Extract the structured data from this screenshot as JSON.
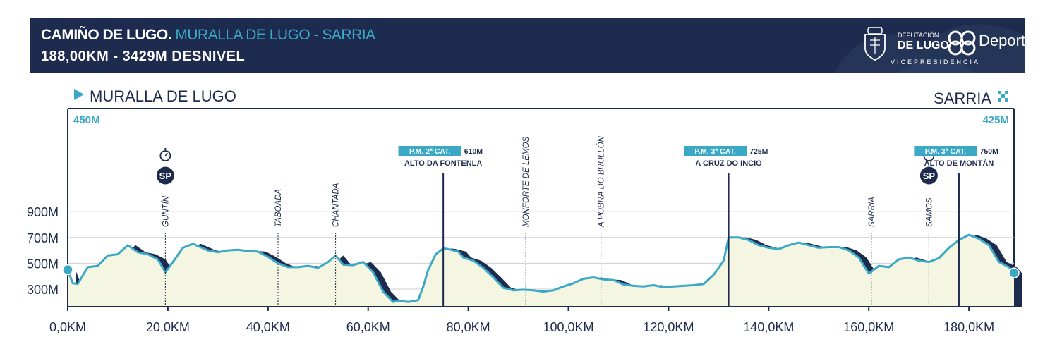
{
  "header": {
    "route_prefix": "CAMIÑO DE LUGO.",
    "route_name": "MURALLA DE LUGO - SARRIA",
    "subtitle": "188,00KM - 3429M DESNIVEL"
  },
  "logo": {
    "line1": "DEPUTACIÓN",
    "line2": "DE LUGO",
    "brand": "Deportes",
    "line3": "VICEPRESIDENCIA"
  },
  "start": {
    "label": "MURALLA DE LUGO",
    "altitude": "450M"
  },
  "finish": {
    "label": "SARRIA",
    "altitude": "425M"
  },
  "colors": {
    "navy": "#1d2b4e",
    "accent": "#3ba9c6",
    "fill": "#f4f6e2",
    "grid": "#cfcfcf"
  },
  "icons": {
    "start": "play-triangle-icon",
    "finish": "checkered-flag-icon",
    "sprint": "stopwatch-icon"
  },
  "chart_data": {
    "type": "area",
    "xlabel": "",
    "ylabel": "",
    "xlim": [
      0,
      189
    ],
    "ylim": [
      200,
      900
    ],
    "x_ticks": [
      0,
      20,
      40,
      60,
      80,
      100,
      120,
      140,
      160,
      180
    ],
    "x_tick_labels": [
      "0,0KM",
      "20,0KM",
      "40,0KM",
      "60,0KM",
      "80,0KM",
      "100,0KM",
      "120,0KM",
      "140,0KM",
      "160,0KM",
      "180,0KM"
    ],
    "y_ticks": [
      300,
      500,
      700,
      900
    ],
    "y_tick_labels": [
      "300M",
      "500M",
      "700M",
      "900M"
    ],
    "grid": true,
    "series": [
      {
        "x": [
          0,
          1,
          2,
          4,
          6,
          8,
          10,
          12,
          14,
          16,
          18,
          19.5,
          21,
          23,
          25,
          26.5,
          28,
          30,
          32,
          34,
          36,
          38,
          40,
          42,
          44,
          46,
          48,
          50,
          52,
          53.5,
          55,
          57,
          59,
          61,
          63,
          65,
          66,
          68,
          70,
          71,
          72,
          73.5,
          75,
          76,
          78,
          79,
          81,
          83,
          85,
          87,
          89,
          91,
          93,
          95,
          97,
          99,
          101,
          103,
          105,
          107,
          109,
          111,
          113,
          115,
          117,
          119,
          121,
          123,
          125,
          127,
          129,
          131,
          132,
          134,
          136,
          138,
          140,
          142,
          144,
          146,
          148,
          150,
          152,
          154,
          156,
          158,
          160,
          162,
          164,
          166,
          168,
          170,
          172,
          174,
          176,
          178,
          180,
          182,
          184,
          186,
          188,
          189
        ],
        "y": [
          450,
          345,
          340,
          470,
          480,
          560,
          570,
          640,
          585,
          570,
          530,
          430,
          510,
          620,
          650,
          625,
          600,
          585,
          600,
          605,
          595,
          590,
          550,
          500,
          470,
          470,
          480,
          465,
          510,
          560,
          490,
          485,
          510,
          430,
          280,
          200,
          210,
          200,
          215,
          320,
          450,
          570,
          615,
          610,
          590,
          545,
          520,
          465,
          390,
          310,
          290,
          295,
          290,
          280,
          290,
          320,
          345,
          380,
          390,
          375,
          370,
          335,
          325,
          320,
          330,
          315,
          320,
          325,
          330,
          340,
          410,
          520,
          700,
          700,
          680,
          640,
          620,
          610,
          640,
          660,
          640,
          620,
          625,
          625,
          600,
          545,
          420,
          480,
          470,
          530,
          545,
          520,
          510,
          540,
          620,
          680,
          720,
          690,
          640,
          510,
          470,
          425
        ],
        "name": ""
      }
    ],
    "markers": [
      {
        "type": "sprint",
        "km": 19.5,
        "label": "GUNTÍN"
      },
      {
        "type": "town",
        "km": 42.0,
        "label": "TABOADA"
      },
      {
        "type": "town",
        "km": 53.5,
        "label": "CHANTADA"
      },
      {
        "type": "climb",
        "km": 75.0,
        "badge": "P.M. 2ª CAT.",
        "altitude": "610M",
        "label": "ALTO DA FONTENLA"
      },
      {
        "type": "town",
        "km": 91.5,
        "label": "MONFORTE DE LEMOS"
      },
      {
        "type": "town",
        "km": 106.5,
        "label": "A POBRA DO BROLLÓN"
      },
      {
        "type": "climb",
        "km": 132.0,
        "badge": "P.M. 3ª CAT.",
        "altitude": "725M",
        "label": "A CRUZ DO INCIO"
      },
      {
        "type": "town",
        "km": 160.5,
        "label": "SARRIA"
      },
      {
        "type": "sprint",
        "km": 172.0,
        "label": "SAMOS"
      },
      {
        "type": "climb",
        "km": 178.0,
        "badge": "P.M. 3ª CAT.",
        "altitude": "750M",
        "label": "ALTO DE MONTÁN"
      }
    ],
    "sprint_badge": "SP"
  }
}
